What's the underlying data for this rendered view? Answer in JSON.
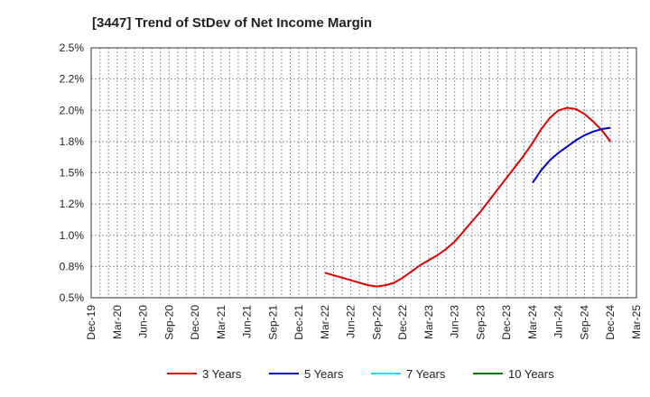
{
  "chart_data": {
    "type": "line",
    "title": "[3447]  Trend of StDev of Net Income Margin",
    "xlabel": "",
    "ylabel": "",
    "x_ticks": [
      "Dec-19",
      "Mar-20",
      "Jun-20",
      "Sep-20",
      "Dec-20",
      "Mar-21",
      "Jun-21",
      "Sep-21",
      "Dec-21",
      "Mar-22",
      "Jun-22",
      "Sep-22",
      "Dec-22",
      "Mar-23",
      "Jun-23",
      "Sep-23",
      "Dec-23",
      "Mar-24",
      "Jun-24",
      "Sep-24",
      "Dec-24",
      "Mar-25"
    ],
    "y_ticks": [
      "0.5%",
      "0.8%",
      "1.0%",
      "1.2%",
      "1.5%",
      "1.8%",
      "2.0%",
      "2.2%",
      "2.5%"
    ],
    "ylim": [
      0.5,
      2.5
    ],
    "grid": true,
    "legend_position": "bottom",
    "series": [
      {
        "name": "3 Years",
        "color": "#e00000",
        "x": [
          "Mar-22",
          "Apr-22",
          "May-22",
          "Jun-22",
          "Jul-22",
          "Aug-22",
          "Sep-22",
          "Oct-22",
          "Nov-22",
          "Dec-22",
          "Jan-23",
          "Feb-23",
          "Mar-23",
          "Apr-23",
          "May-23",
          "Jun-23",
          "Jul-23",
          "Aug-23",
          "Sep-23",
          "Oct-23",
          "Nov-23",
          "Dec-23",
          "Jan-24",
          "Feb-24",
          "Mar-24",
          "Apr-24",
          "May-24",
          "Jun-24",
          "Jul-24",
          "Aug-24",
          "Sep-24",
          "Oct-24",
          "Nov-24",
          "Dec-24"
        ],
        "values": [
          0.7,
          0.68,
          0.66,
          0.64,
          0.62,
          0.6,
          0.59,
          0.6,
          0.62,
          0.66,
          0.71,
          0.76,
          0.8,
          0.84,
          0.89,
          0.95,
          1.03,
          1.11,
          1.19,
          1.28,
          1.37,
          1.46,
          1.55,
          1.64,
          1.74,
          1.85,
          1.94,
          2.0,
          2.02,
          2.01,
          1.97,
          1.91,
          1.84,
          1.75
        ]
      },
      {
        "name": "5 Years",
        "color": "#0000cc",
        "x": [
          "Mar-24",
          "Apr-24",
          "May-24",
          "Jun-24",
          "Jul-24",
          "Aug-24",
          "Sep-24",
          "Oct-24",
          "Nov-24",
          "Dec-24"
        ],
        "values": [
          1.42,
          1.52,
          1.6,
          1.66,
          1.71,
          1.76,
          1.8,
          1.83,
          1.85,
          1.86
        ]
      },
      {
        "name": "7 Years",
        "color": "#00e5ee",
        "x": [],
        "values": []
      },
      {
        "name": "10 Years",
        "color": "#007700",
        "x": [],
        "values": []
      }
    ]
  }
}
